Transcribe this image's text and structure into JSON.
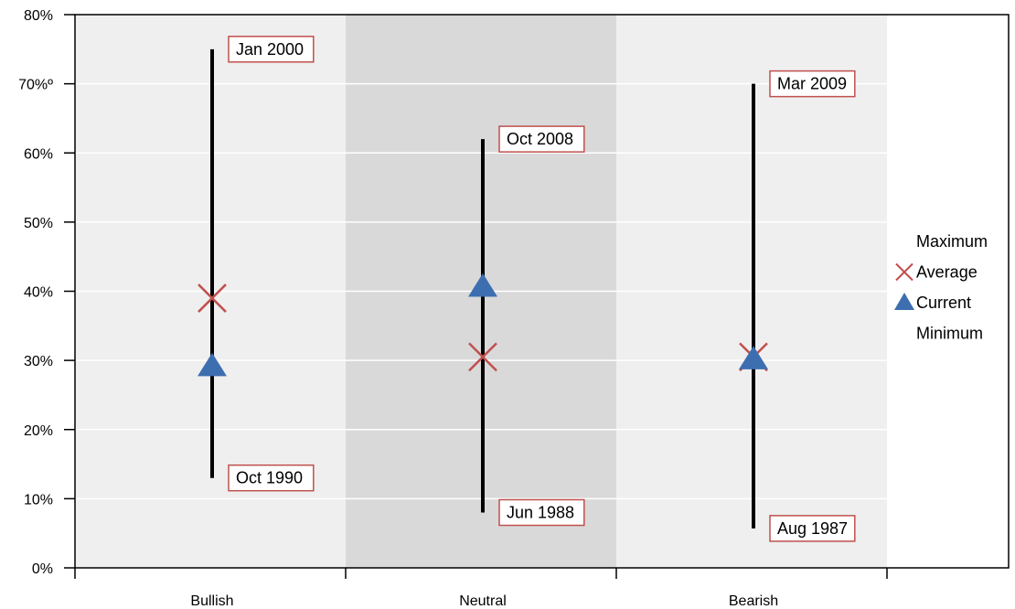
{
  "chart_data": {
    "type": "range",
    "title": "",
    "xlabel": "",
    "ylabel": "",
    "categories": [
      "Bullish",
      "Neutral",
      "Bearish"
    ],
    "ylim": [
      0,
      80
    ],
    "yticks": [
      0,
      10,
      20,
      30,
      40,
      50,
      60,
      70,
      80
    ],
    "ytick_labels": [
      "0%",
      "10%",
      "20%",
      "30%",
      "40%",
      "50%",
      "60%",
      "70%º",
      "80%"
    ],
    "grid": true,
    "series": [
      {
        "name": "Maximum",
        "values": [
          75,
          62,
          70
        ]
      },
      {
        "name": "Average",
        "values": [
          39,
          30.5,
          30.5
        ]
      },
      {
        "name": "Current",
        "values": [
          29,
          40.5,
          30
        ]
      },
      {
        "name": "Minimum",
        "values": [
          13,
          8,
          5.7
        ]
      }
    ],
    "annotations": {
      "max_labels": [
        "Jan 2000",
        "Oct 2008",
        "Mar 2009"
      ],
      "min_labels": [
        "Oct 1990",
        "Jun 1988",
        "Aug 1987"
      ]
    },
    "legend": {
      "position": "right",
      "entries": [
        "Maximum",
        "Average",
        "Current",
        "Minimum"
      ]
    },
    "colors": {
      "range_line": "#000000",
      "average_marker": "#c0504d",
      "current_marker": "#3d6eb0",
      "band_light": "#efefef",
      "band_dark": "#d9d9d9",
      "annotation_border": "#c0504d"
    }
  }
}
